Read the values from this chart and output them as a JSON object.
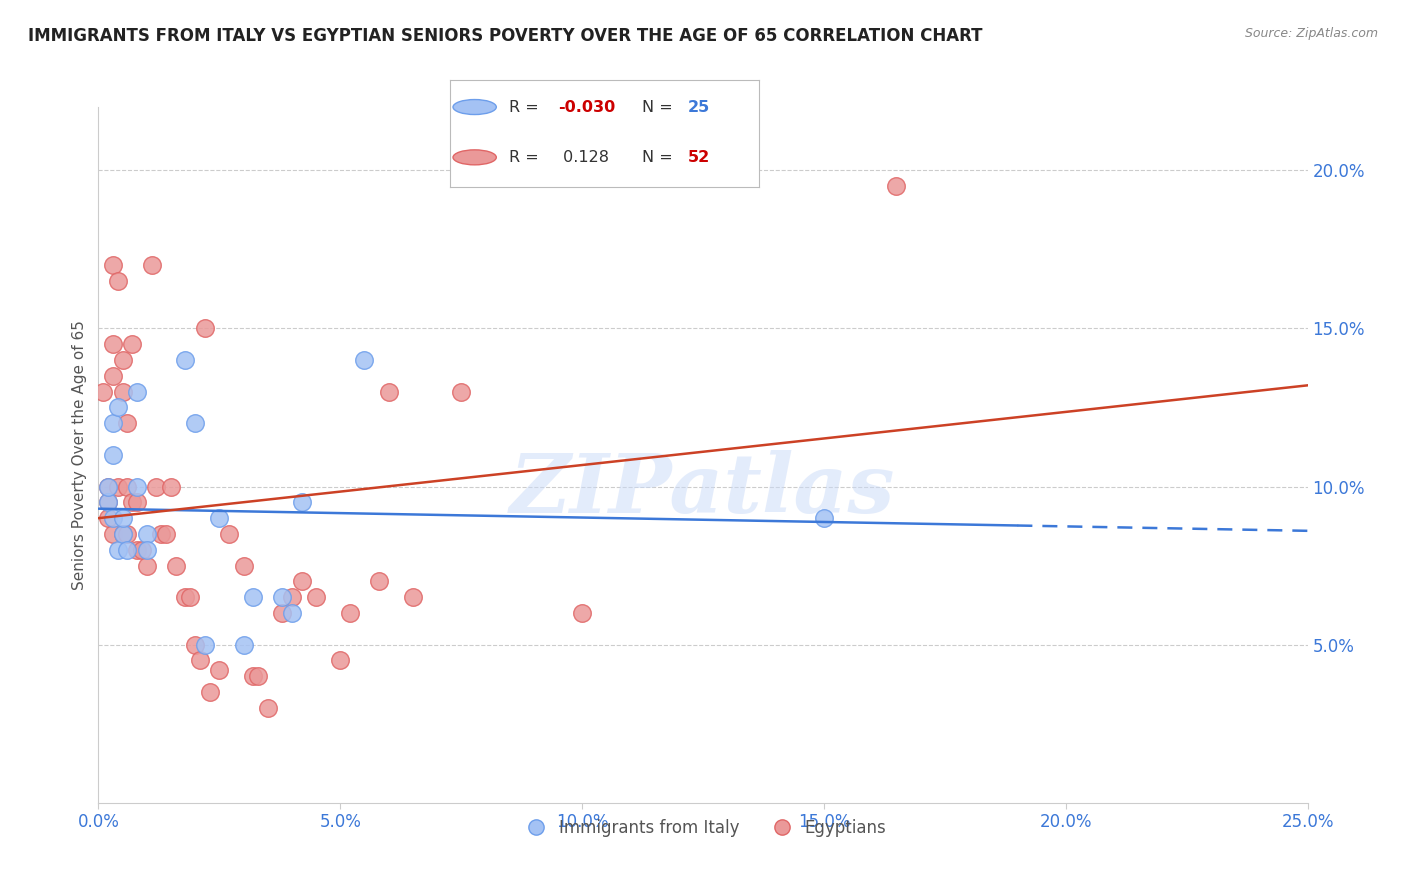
{
  "title": "IMMIGRANTS FROM ITALY VS EGYPTIAN SENIORS POVERTY OVER THE AGE OF 65 CORRELATION CHART",
  "source": "Source: ZipAtlas.com",
  "ylabel": "Seniors Poverty Over the Age of 65",
  "legend_label1": "Immigrants from Italy",
  "legend_label2": "Egyptians",
  "xlim": [
    0.0,
    0.25
  ],
  "ylim": [
    0.0,
    0.22
  ],
  "xticks": [
    0.0,
    0.05,
    0.1,
    0.15,
    0.2,
    0.25
  ],
  "yticks_right": [
    0.05,
    0.1,
    0.15,
    0.2
  ],
  "watermark": "ZIPatlas",
  "color_blue": "#a4c2f4",
  "color_blue_edge": "#6d9eeb",
  "color_pink": "#ea9999",
  "color_pink_edge": "#e06666",
  "color_blue_line": "#3c78d8",
  "color_pink_line": "#cc4125",
  "blue_scatter_x": [
    0.002,
    0.002,
    0.003,
    0.003,
    0.003,
    0.004,
    0.004,
    0.005,
    0.005,
    0.006,
    0.008,
    0.008,
    0.01,
    0.01,
    0.018,
    0.02,
    0.022,
    0.025,
    0.03,
    0.032,
    0.038,
    0.04,
    0.042,
    0.055,
    0.15
  ],
  "blue_scatter_y": [
    0.095,
    0.1,
    0.09,
    0.11,
    0.12,
    0.125,
    0.08,
    0.085,
    0.09,
    0.08,
    0.13,
    0.1,
    0.085,
    0.08,
    0.14,
    0.12,
    0.05,
    0.09,
    0.05,
    0.065,
    0.065,
    0.06,
    0.095,
    0.14,
    0.09
  ],
  "pink_scatter_x": [
    0.001,
    0.002,
    0.002,
    0.002,
    0.003,
    0.003,
    0.003,
    0.003,
    0.004,
    0.004,
    0.005,
    0.005,
    0.005,
    0.006,
    0.006,
    0.006,
    0.007,
    0.007,
    0.008,
    0.008,
    0.009,
    0.01,
    0.011,
    0.012,
    0.013,
    0.014,
    0.015,
    0.016,
    0.018,
    0.019,
    0.02,
    0.021,
    0.022,
    0.023,
    0.025,
    0.027,
    0.03,
    0.032,
    0.033,
    0.035,
    0.038,
    0.04,
    0.042,
    0.045,
    0.05,
    0.052,
    0.058,
    0.06,
    0.065,
    0.075,
    0.1,
    0.165
  ],
  "pink_scatter_y": [
    0.13,
    0.1,
    0.095,
    0.09,
    0.145,
    0.135,
    0.085,
    0.17,
    0.165,
    0.1,
    0.14,
    0.13,
    0.085,
    0.12,
    0.1,
    0.085,
    0.145,
    0.095,
    0.08,
    0.095,
    0.08,
    0.075,
    0.17,
    0.1,
    0.085,
    0.085,
    0.1,
    0.075,
    0.065,
    0.065,
    0.05,
    0.045,
    0.15,
    0.035,
    0.042,
    0.085,
    0.075,
    0.04,
    0.04,
    0.03,
    0.06,
    0.065,
    0.07,
    0.065,
    0.045,
    0.06,
    0.07,
    0.13,
    0.065,
    0.13,
    0.06,
    0.195
  ],
  "blue_line_y_start": 0.093,
  "blue_line_y_end": 0.086,
  "blue_line_dash_start": 0.19,
  "pink_line_y_start": 0.09,
  "pink_line_y_end": 0.132
}
